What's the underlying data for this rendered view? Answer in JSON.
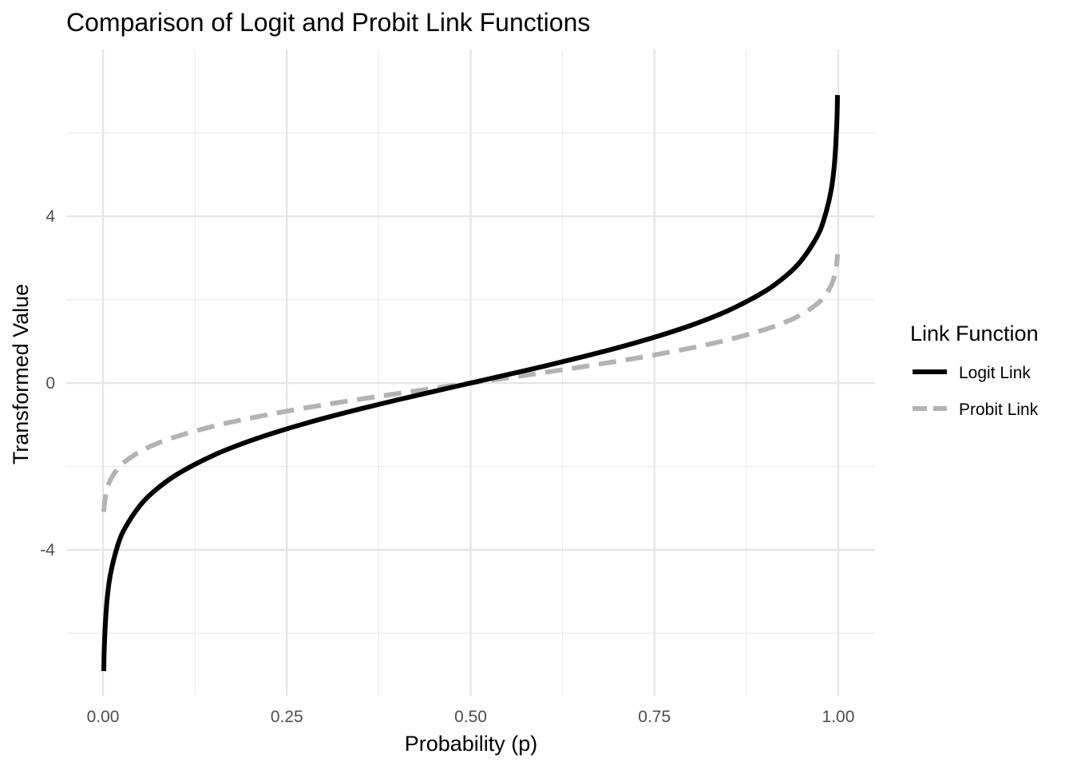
{
  "chart_data": {
    "type": "line",
    "title": "Comparison of Logit and Probit Link Functions",
    "xlabel": "Probability (p)",
    "ylabel": "Transformed Value",
    "xlim": [
      -0.05,
      1.05
    ],
    "ylim": [
      -7.5,
      8.0
    ],
    "x_ticks": [
      0.0,
      0.25,
      0.5,
      0.75,
      1.0
    ],
    "x_tick_labels": [
      "0.00",
      "0.25",
      "0.50",
      "0.75",
      "1.00"
    ],
    "y_ticks": [
      -4,
      0,
      4
    ],
    "y_tick_labels": [
      "-4",
      "0",
      "4"
    ],
    "grid": true,
    "legend": {
      "title": "Link Function",
      "position": "right"
    },
    "x": [
      0.001,
      0.002,
      0.005,
      0.01,
      0.02,
      0.03,
      0.05,
      0.07,
      0.1,
      0.15,
      0.2,
      0.25,
      0.3,
      0.35,
      0.4,
      0.45,
      0.5,
      0.55,
      0.6,
      0.65,
      0.7,
      0.75,
      0.8,
      0.85,
      0.9,
      0.93,
      0.95,
      0.97,
      0.98,
      0.99,
      0.995,
      0.998,
      0.999
    ],
    "series": [
      {
        "name": "Logit Link",
        "color": "#000000",
        "style": "solid",
        "values": [
          -6.907,
          -6.213,
          -5.293,
          -4.595,
          -3.892,
          -3.476,
          -2.944,
          -2.587,
          -2.197,
          -1.735,
          -1.386,
          -1.099,
          -0.847,
          -0.619,
          -0.405,
          -0.201,
          0.0,
          0.201,
          0.405,
          0.619,
          0.847,
          1.099,
          1.386,
          1.735,
          2.197,
          2.587,
          2.944,
          3.476,
          3.892,
          4.595,
          5.293,
          6.213,
          6.907
        ]
      },
      {
        "name": "Probit Link",
        "color": "#b3b3b3",
        "style": "dashed",
        "values": [
          -3.09,
          -2.878,
          -2.576,
          -2.326,
          -2.054,
          -1.881,
          -1.645,
          -1.476,
          -1.282,
          -1.036,
          -0.842,
          -0.674,
          -0.524,
          -0.385,
          -0.253,
          -0.126,
          0.0,
          0.126,
          0.253,
          0.385,
          0.524,
          0.674,
          0.842,
          1.036,
          1.282,
          1.476,
          1.645,
          1.881,
          2.054,
          2.326,
          2.576,
          2.878,
          3.09
        ]
      }
    ]
  }
}
